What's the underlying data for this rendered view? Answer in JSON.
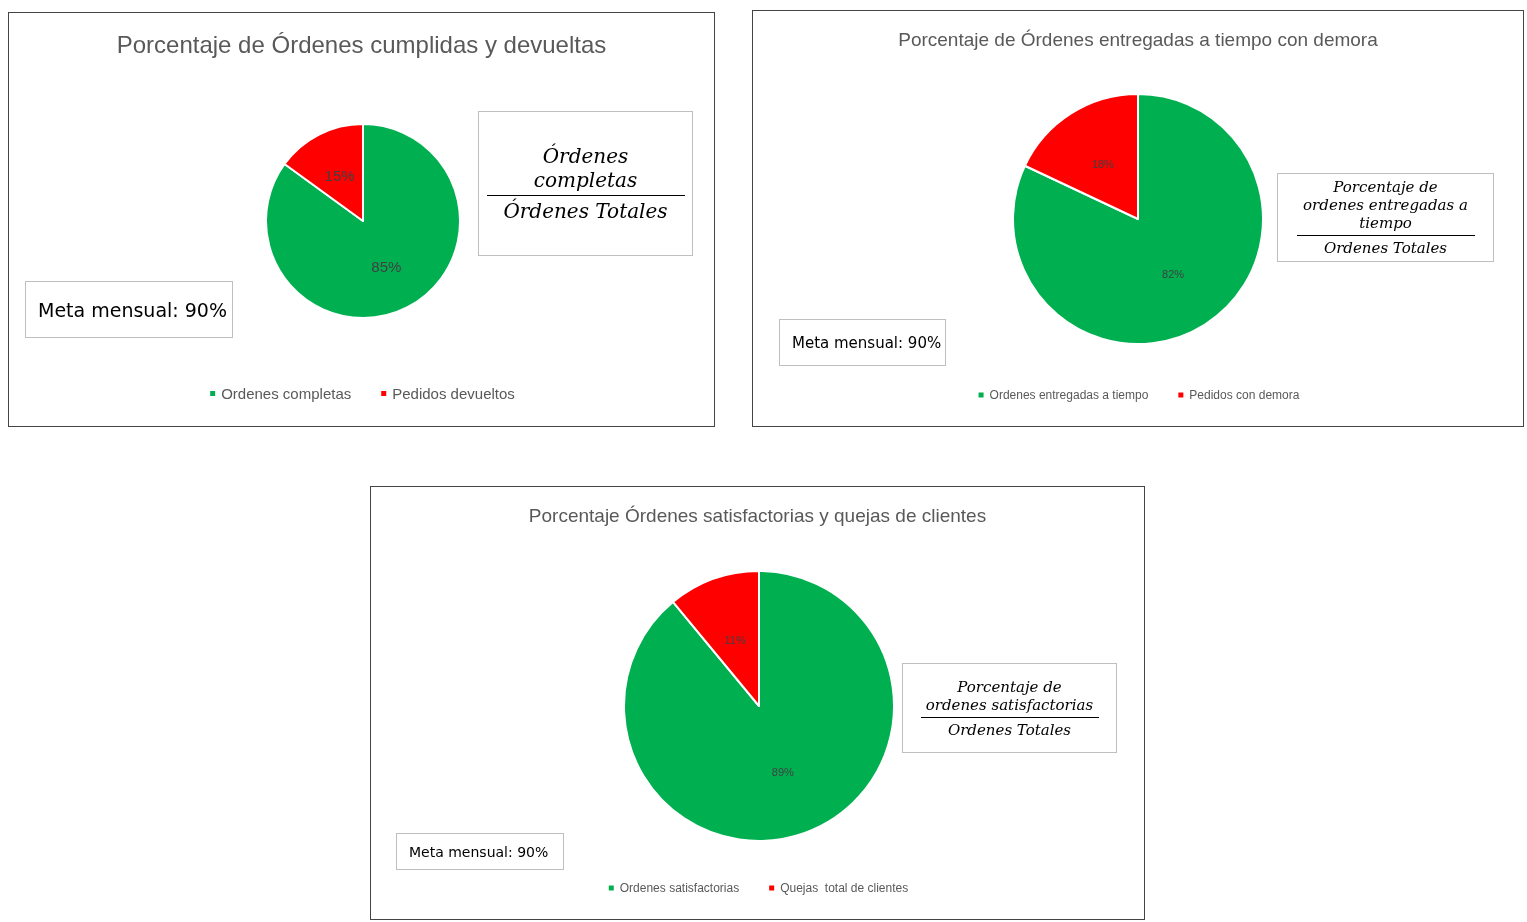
{
  "chart_data": [
    {
      "type": "pie",
      "title": "Porcentaje de Órdenes cumplidas y devueltas",
      "categories": [
        "Ordenes completas",
        "Pedidos devueltos"
      ],
      "values": [
        85,
        15
      ],
      "colors": [
        "#00b050",
        "#ff0000"
      ],
      "value_labels": [
        "85%",
        "15%"
      ],
      "legend": "bottom",
      "annotations": [
        "Órdenes completas",
        "Órdenes Totales",
        "Meta mensual: 90%"
      ]
    },
    {
      "type": "pie",
      "title": "Porcentaje de Órdenes entregadas a tiempo con demora",
      "categories": [
        "Ordenes entregadas a tiempo",
        "Pedidos con demora"
      ],
      "values": [
        82,
        18
      ],
      "colors": [
        "#00b050",
        "#ff0000"
      ],
      "value_labels": [
        "82%",
        "18%"
      ],
      "legend": "bottom",
      "annotations": [
        "Porcentaje de ordenes entregadas a tiempo",
        "Ordenes Totales",
        "Meta mensual: 90%"
      ]
    },
    {
      "type": "pie",
      "title": "Porcentaje Órdenes satisfactorias y quejas de clientes",
      "categories": [
        "Ordenes satisfactorias",
        "Quejas  total de clientes"
      ],
      "values": [
        89,
        11
      ],
      "colors": [
        "#00b050",
        "#ff0000"
      ],
      "value_labels": [
        "89%",
        "11%"
      ],
      "legend": "bottom",
      "annotations": [
        "Porcentaje de ordenes satisfactorias",
        "Ordenes Totales",
        "Meta mensual: 90%"
      ]
    }
  ]
}
